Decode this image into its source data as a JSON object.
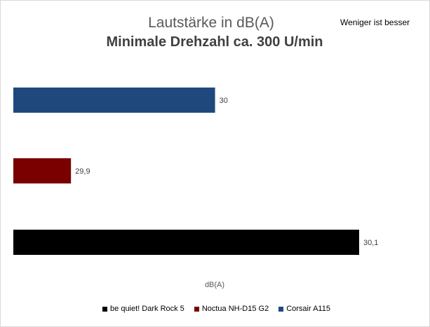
{
  "chart_data": {
    "type": "bar",
    "orientation": "horizontal",
    "title": "Lautstärke in dB(A)",
    "subtitle": "Minimale Drehzahl ca. 300 U/min",
    "note": "Weniger ist besser",
    "xlabel": "dB(A)",
    "grid": false,
    "legend_position": "bottom",
    "xlim": [
      29.86,
      30.1
    ],
    "bars": [
      {
        "series": "Corsair A115",
        "value": 30,
        "label": "30",
        "color": "#1f497d"
      },
      {
        "series": "Noctua NH-D15 G2",
        "value": 29.9,
        "label": "29,9",
        "color": "#7a0000"
      },
      {
        "series": "be quiet! Dark Rock 5",
        "value": 30.1,
        "label": "30,1",
        "color": "#000000"
      }
    ],
    "legend": [
      {
        "name": "be quiet! Dark Rock 5",
        "color": "#000000"
      },
      {
        "name": "Noctua NH-D15 G2",
        "color": "#7a0000"
      },
      {
        "name": "Corsair A115",
        "color": "#1f497d"
      }
    ]
  }
}
